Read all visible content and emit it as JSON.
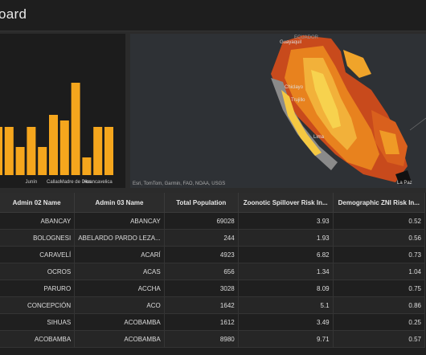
{
  "header": {
    "title": "oard"
  },
  "chart_data": {
    "type": "bar",
    "categories": [
      "",
      "",
      "",
      "Junín",
      "",
      "Callao",
      "",
      "Madre de Dios",
      "",
      "Huancavelica",
      ""
    ],
    "values": [
      60,
      60,
      35,
      60,
      35,
      75,
      68,
      115,
      22,
      60,
      60
    ],
    "color": "#f5a61d"
  },
  "map": {
    "labels": {
      "ecuador": "ECUADOR",
      "guayaquil": "Guayaquil",
      "chiclayo": "Chiclayo",
      "trujillo": "Trujillo",
      "lima": "Lima",
      "la_paz": "La Paz"
    },
    "attribution": "Esri, TomTom, Garmin, FAO, NOAA, USGS"
  },
  "table": {
    "columns": [
      "Admin 02 Name",
      "Admin 03 Name",
      "Total Population",
      "Zoonotic Spillover Risk In...",
      "Demographic ZNI Risk In..."
    ],
    "rows": [
      [
        "ABANCAY",
        "ABANCAY",
        "69028",
        "3.93",
        "0.52"
      ],
      [
        "BOLOGNESI",
        "ABELARDO PARDO LEZA...",
        "244",
        "1.93",
        "0.56"
      ],
      [
        "CARAVELÍ",
        "ACARÍ",
        "4923",
        "6.82",
        "0.73"
      ],
      [
        "OCROS",
        "ACAS",
        "656",
        "1.34",
        "1.04"
      ],
      [
        "PARURO",
        "ACCHA",
        "3028",
        "8.09",
        "0.75"
      ],
      [
        "CONCEPCIÓN",
        "ACO",
        "1642",
        "5.1",
        "0.86"
      ],
      [
        "SIHUAS",
        "ACOBAMBA",
        "1612",
        "3.49",
        "0.25"
      ],
      [
        "ACOBAMBA",
        "ACOBAMBA",
        "8980",
        "9.71",
        "0.57"
      ]
    ]
  }
}
